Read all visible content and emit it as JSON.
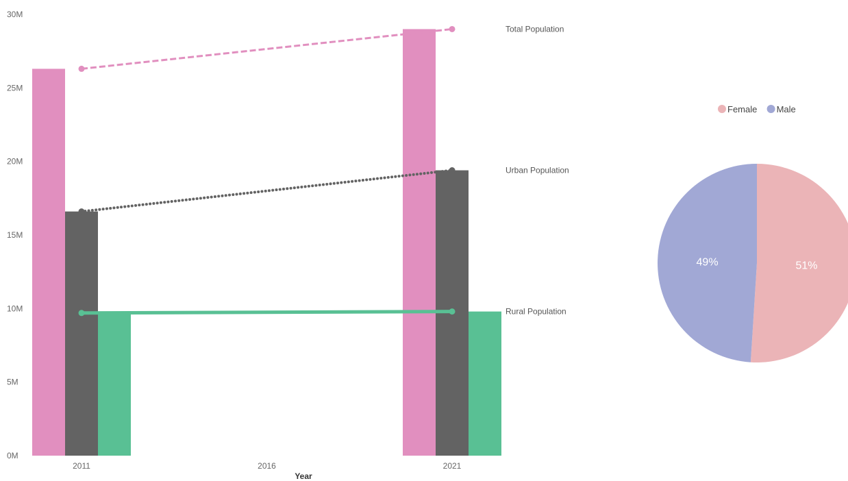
{
  "chart_data": [
    {
      "type": "bar",
      "xlabel": "Year",
      "ylabel": "",
      "x_ticks": [
        "2011",
        "2016",
        "2021"
      ],
      "y_ticks": [
        "0M",
        "5M",
        "10M",
        "15M",
        "20M",
        "25M",
        "30M"
      ],
      "ylim": [
        0,
        30000000
      ],
      "categories": [
        "2011",
        "2021"
      ],
      "series": [
        {
          "name": "Total Population",
          "color": "#e18fbf",
          "line_style": "dashed",
          "values": [
            26300000,
            29000000
          ]
        },
        {
          "name": "Urban Population",
          "color": "#636363",
          "line_style": "dotted",
          "values": [
            16600000,
            19400000
          ]
        },
        {
          "name": "Rural Population",
          "color": "#59c094",
          "line_style": "solid",
          "values": [
            9700000,
            9800000
          ]
        }
      ]
    },
    {
      "type": "pie",
      "legend_position": "top",
      "slices": [
        {
          "name": "Female",
          "label": "51%",
          "value": 51,
          "color": "#ebb4b7"
        },
        {
          "name": "Male",
          "label": "49%",
          "value": 49,
          "color": "#a1a8d5"
        }
      ]
    }
  ]
}
